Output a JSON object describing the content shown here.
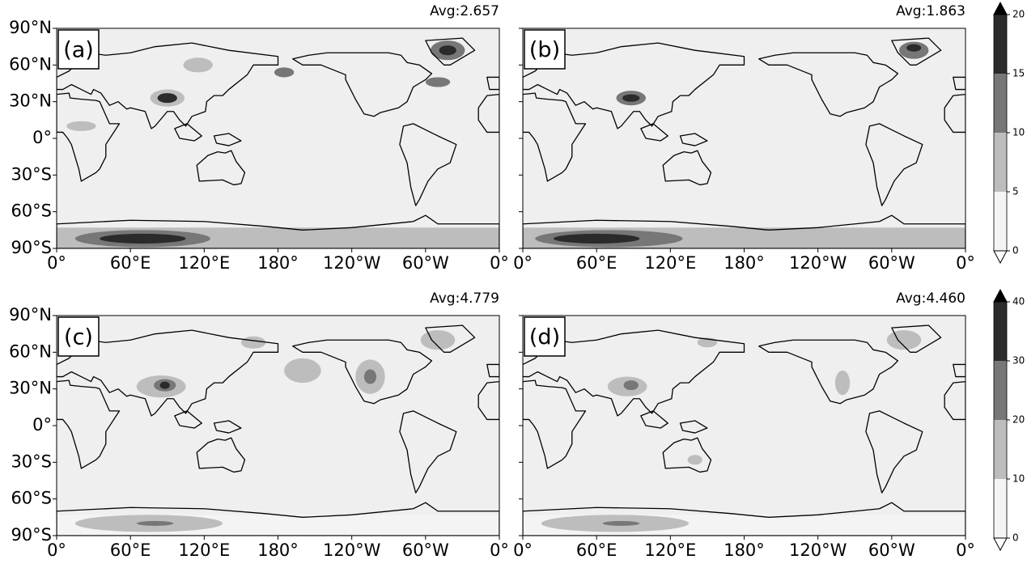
{
  "panels": [
    {
      "label": "(a)",
      "avg": "Avg:2.657"
    },
    {
      "label": "(b)",
      "avg": "Avg:1.863"
    },
    {
      "label": "(c)",
      "avg": "Avg:4.779"
    },
    {
      "label": "(d)",
      "avg": "Avg:4.460"
    }
  ],
  "lat_ticks": [
    "90°N",
    "60°N",
    "30°N",
    "0°",
    "30°S",
    "60°S",
    "90°S"
  ],
  "lon_ticks": [
    "0°",
    "60°E",
    "120°E",
    "180°",
    "120°W",
    "60°W",
    "0°"
  ],
  "colorbars": [
    {
      "ticks": [
        0,
        5,
        10,
        15,
        20
      ],
      "colors": [
        "#f4f4f4",
        "#bdbdbd",
        "#777777",
        "#2b2b2b"
      ]
    },
    {
      "ticks": [
        0,
        10,
        20,
        30,
        40
      ],
      "colors": [
        "#f4f4f4",
        "#bdbdbd",
        "#777777",
        "#2b2b2b"
      ]
    }
  ]
}
